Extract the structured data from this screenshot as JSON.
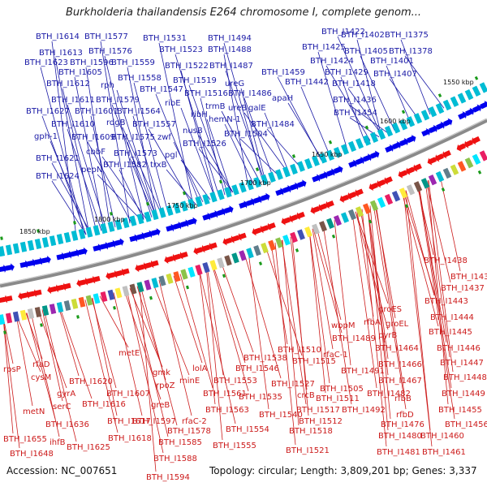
{
  "title": "Burkholderia thailandensis E264 chromosome I, complete genom...",
  "footer": {
    "accession": "Accession: NC_007651",
    "stats": "Topology: circular; Length: 3,809,201 bp; Genes: 3,337"
  },
  "scale_labels": [
    "1850 kbp",
    "1800 kbp",
    "1750 kbp",
    "1700 kbp",
    "1650 kbp",
    "1600 kbp",
    "1550 kbp"
  ],
  "colors": {
    "forward_strand": "#0000ee",
    "reverse_strand": "#ee1111",
    "top_label": "#1a1aa6",
    "bottom_label": "#cc1a1a",
    "backbone": "#888888"
  },
  "top_genes": [
    "BTH_I1614",
    "BTH_I1577",
    "BTH_I1531",
    "BTH_I1494",
    "BTH_I1422",
    "BTH_I1402",
    "BTH_I1375",
    "BTH_I1613",
    "BTH_I1576",
    "BTH_I1523",
    "BTH_I1488",
    "BTH_I1425",
    "BTH_I1405",
    "BTH_I1378",
    "BTH_I1623",
    "BTH_I1596",
    "BTH_I1559",
    "BTH_I1522",
    "BTH_I1487",
    "BTH_I1424",
    "BTH_I1401",
    "BTH_I1605",
    "BTH_I1558",
    "BTH_I1519",
    "BTH_I1459",
    "BTH_I1429",
    "BTH_I1407",
    "BTH_I1612",
    "rph",
    "BTH_I1547",
    "ureG",
    "BTH_I1442",
    "BTH_I1418",
    "BTH_I1611",
    "BTH_I1579",
    "BTH_I1516",
    "BTH_I1486",
    "apaH",
    "BTH_I1436",
    "BTH_I1627",
    "BTH_I1601",
    "BTH_I1564",
    "ribE",
    "trmB",
    "ureB",
    "galE",
    "BTH_I1454",
    "BTH_I1610",
    "rdgB",
    "BTH_I1557",
    "ribH",
    "hemN-1",
    "BTH_I1484",
    "gph-1",
    "BTH_I1609",
    "BTH_I1575",
    "zwf",
    "nusB",
    "BTH_I1504",
    "cbbF",
    "BTH_I1573",
    "pgl",
    "BTH_I1526",
    "BTH_I1621",
    "pepN",
    "BTH_I1582",
    "trxB",
    "BTH_I1624"
  ],
  "bottom_genes": [
    "BTH_I1438",
    "BTH_I1433",
    "BTH_I1437",
    "BTH_I1443",
    "groES",
    "BTH_I1444",
    "rfbA",
    "groEL",
    "wbpM",
    "BTH_I1489",
    "pyrB",
    "BTH_I1445",
    "BTH_I1510",
    "rfaC-1",
    "BTH_I1464",
    "BTH_I1446",
    "BTH_I1538",
    "BTH_I1515",
    "BTH_I1491",
    "BTH_I1466",
    "BTH_I1447",
    "lolA",
    "BTH_I1546",
    "BTH_I1527",
    "crcB",
    "BTH_I1467",
    "BTH_I1448",
    "metE",
    "gmk",
    "minE",
    "BTH_I1553",
    "BTH_I1505",
    "BTH_I1482",
    "rfbB",
    "BTH_I1449",
    "rpsP",
    "rfaD",
    "BTH_I1620",
    "BTH_I1607",
    "rpoZ",
    "BTH_I1561",
    "BTH_I1535",
    "BTH_I1511",
    "BTH_I1455",
    "cysM",
    "gyrA",
    "BTH_I1616",
    "greB",
    "BTH_I1563",
    "BTH_I1540",
    "BTH_I1517",
    "BTH_I1492",
    "rfbD",
    "BTH_I1456",
    "metN",
    "serC",
    "BTH_I1617",
    "BTH_I1597",
    "rfaC-2",
    "BTH_I1554",
    "BTH_I1512",
    "BTH_I1476",
    "BTH_I1460",
    "BTH_I1636",
    "BTH_I1618",
    "BTH_I1578",
    "BTH_I1518",
    "BTH_I1480",
    "BTH_I1655",
    "ihfB",
    "BTH_I1625",
    "BTH_I1585",
    "BTH_I1555",
    "BTH_I1521",
    "BTH_I1481",
    "BTH_I1461",
    "BTH_I1648",
    "BTH_I1588",
    "BTH_I1594"
  ]
}
